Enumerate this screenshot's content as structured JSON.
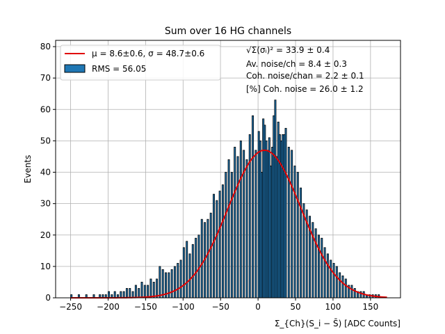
{
  "chart_data": {
    "type": "bar",
    "title": "Sum over 16 HG channels",
    "xlabel": "Σ_{Ch}(S_i − S̄) [ADC Counts]",
    "ylabel": "Events",
    "xlim": [
      -270,
      190
    ],
    "ylim": [
      0,
      82
    ],
    "xticks": [
      -250,
      -200,
      -150,
      -100,
      -50,
      0,
      50,
      100,
      150
    ],
    "yticks": [
      0,
      10,
      20,
      30,
      40,
      50,
      60,
      70,
      80
    ],
    "grid": true,
    "legend_position": "top-left",
    "legend": [
      {
        "label": "μ = 8.6±0.6, σ = 48.7±0.6",
        "kind": "line",
        "color": "#e00000"
      },
      {
        "label": "RMS = 56.05",
        "kind": "patch",
        "color": "#1f77b4"
      }
    ],
    "annotations": [
      "√Σ(σᵢ)² = 33.9 ± 0.4",
      "Av. noise/ch  = 8.4 ± 0.3",
      "Coh. noise/chan  = 2.2 ± 0.1",
      "[%] Coh. noise  = 26.0 ± 1.2"
    ],
    "histogram": {
      "bin_width": 2,
      "bin_starts": [
        -250,
        -240,
        -230,
        -220,
        -212,
        -208,
        -204,
        -200,
        -196,
        -192,
        -188,
        -184,
        -180,
        -176,
        -172,
        -168,
        -164,
        -160,
        -156,
        -152,
        -148,
        -144,
        -140,
        -136,
        -132,
        -128,
        -124,
        -120,
        -116,
        -112,
        -108,
        -104,
        -100,
        -96,
        -92,
        -88,
        -84,
        -80,
        -76,
        -72,
        -68,
        -64,
        -60,
        -56,
        -52,
        -48,
        -44,
        -40,
        -36,
        -32,
        -28,
        -24,
        -20,
        -16,
        -12,
        -8,
        -4,
        0,
        2,
        4,
        6,
        8,
        10,
        12,
        14,
        16,
        18,
        20,
        22,
        24,
        26,
        28,
        30,
        32,
        34,
        36,
        40,
        44,
        48,
        52,
        56,
        60,
        64,
        68,
        72,
        76,
        80,
        84,
        88,
        92,
        96,
        100,
        104,
        108,
        112,
        116,
        120,
        124,
        128,
        132,
        136,
        140,
        144,
        148,
        152,
        156,
        160
      ],
      "counts": [
        1,
        1,
        1,
        1,
        1,
        1,
        1,
        2,
        1,
        2,
        1,
        2,
        2,
        3,
        3,
        2,
        4,
        3,
        5,
        4,
        4,
        6,
        5,
        6,
        10,
        9,
        8,
        8,
        9,
        10,
        11,
        12,
        16,
        18,
        14,
        17,
        19,
        20,
        25,
        24,
        25,
        27,
        33,
        31,
        34,
        36,
        40,
        44,
        40,
        48,
        45,
        50,
        47,
        44,
        52,
        58,
        47,
        53,
        50,
        40,
        57,
        55,
        50,
        47,
        51,
        42,
        48,
        58,
        63,
        45,
        56,
        52,
        50,
        52,
        52,
        54,
        48,
        47,
        42,
        40,
        35,
        30,
        28,
        26,
        24,
        22,
        20,
        19,
        16,
        14,
        12,
        11,
        10,
        8,
        7,
        6,
        4,
        4,
        3,
        2,
        2,
        2,
        1,
        1,
        1,
        1,
        1
      ]
    },
    "fit": {
      "type": "gaussian",
      "mu": 8.6,
      "sigma": 48.7,
      "peak": 47,
      "x_range": [
        -250,
        172
      ]
    }
  }
}
